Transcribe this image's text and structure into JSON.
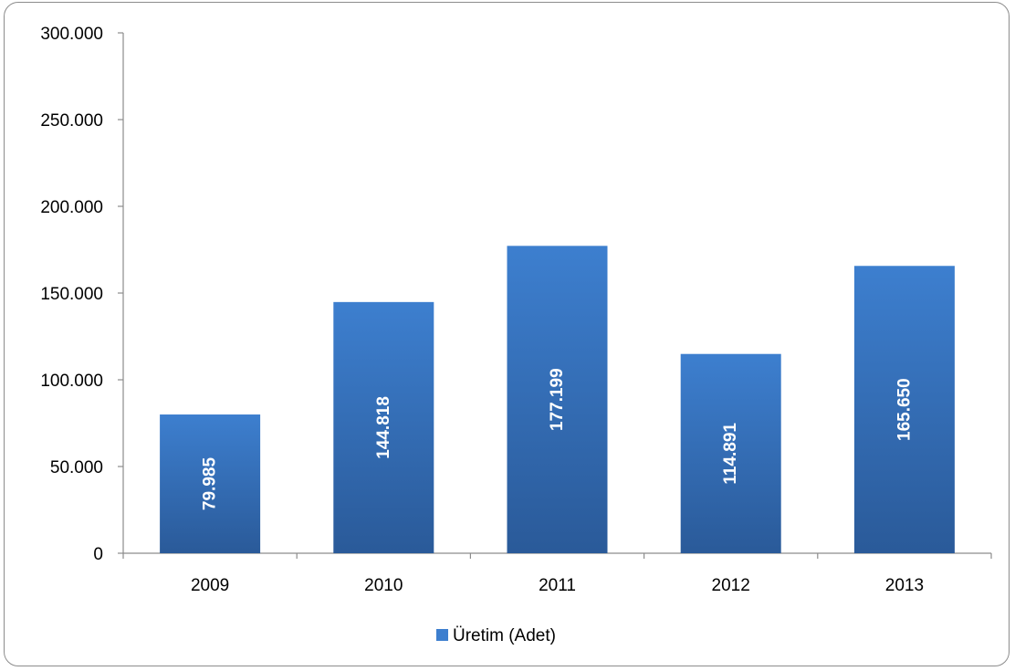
{
  "chart_data": {
    "type": "bar",
    "categories": [
      "2009",
      "2010",
      "2011",
      "2012",
      "2013"
    ],
    "series": [
      {
        "name": "Üretim (Adet)",
        "values": [
          79985,
          144818,
          177199,
          114891,
          165650
        ],
        "labels": [
          "79.985",
          "144.818",
          "177.199",
          "114.891",
          "165.650"
        ]
      }
    ],
    "ylim": [
      0,
      300000
    ],
    "yticks": [
      0,
      50000,
      100000,
      150000,
      200000,
      250000,
      300000
    ],
    "ytick_labels": [
      "0",
      "50.000",
      "100.000",
      "150.000",
      "200.000",
      "250.000",
      "300.000"
    ],
    "grid": false,
    "legend_position": "bottom",
    "colors": {
      "bar_top": "#3d7fcf",
      "bar_bottom": "#2a5a99",
      "axis": "#8c8c8c"
    }
  }
}
